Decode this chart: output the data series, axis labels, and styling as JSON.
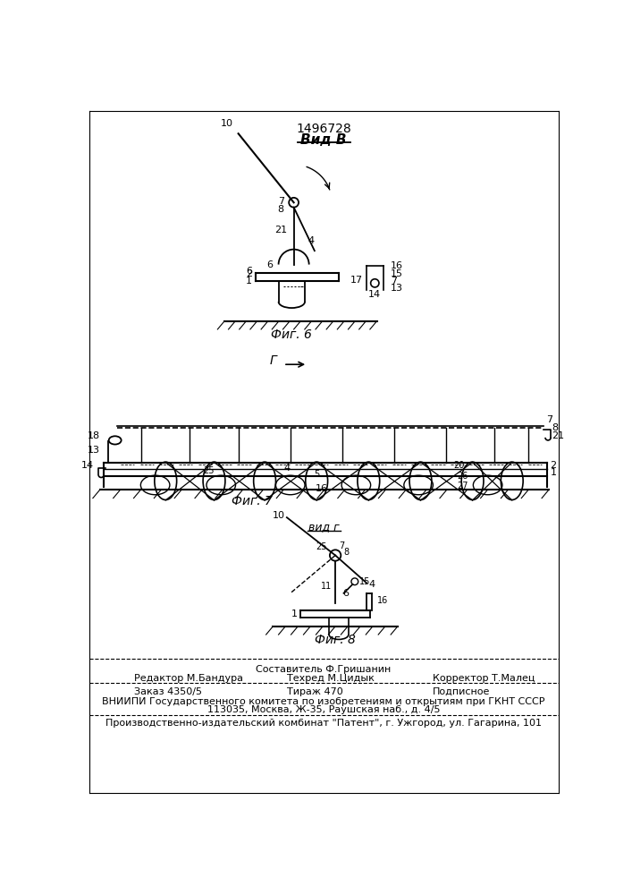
{
  "patent_number": "1496728",
  "vid_b_label": "Вид В",
  "vid_g_label": "вид г",
  "fig6_label": "Фиг. 6",
  "fig7_label": "Фиг. 7",
  "fig8_label": "Фиг. 8",
  "footer_sostavitel": "Составитель Ф.Гришанин",
  "footer_editor": "Редактор М.Бандура",
  "footer_techred": "Техред М.Цидык",
  "footer_corrector": "Корректор Т.Малец",
  "footer_zakaz": "Заказ 4350/5",
  "footer_tirazh": "Тираж 470",
  "footer_podpisnoe": "Подписное",
  "footer_vniipii": "ВНИИПИ Государственного комитета по изобретениям и открытиям при ГКНТ СССР",
  "footer_address": "113035, Москва, Ж-35, Раушская наб., д. 4/5",
  "footer_patent": "Производственно-издательский комбинат \"Патент\", г. Ужгород, ул. Гагарина, 101",
  "bg_color": "#ffffff",
  "line_color": "#000000"
}
